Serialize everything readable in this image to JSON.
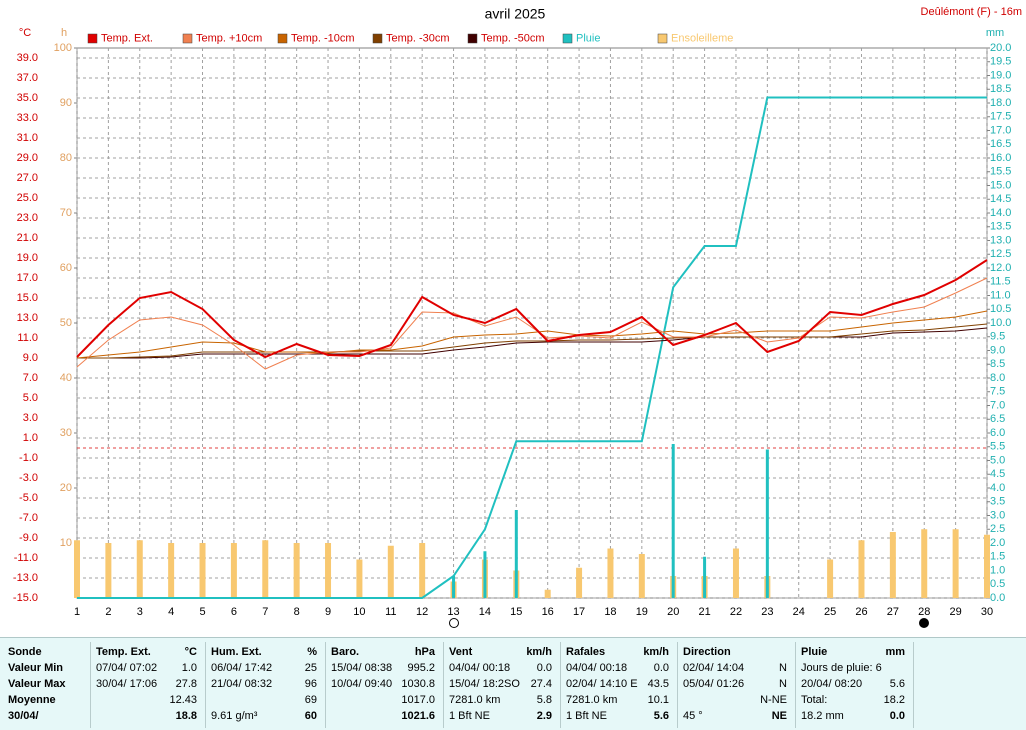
{
  "chart_data": {
    "type": "combo",
    "title": "avril 2025",
    "station": "Deûlémont (F) - 16m",
    "y_unit": "°C",
    "h_unit": "h",
    "y2_unit": "mm",
    "grid": true,
    "x": [
      1,
      2,
      3,
      4,
      5,
      6,
      7,
      8,
      9,
      10,
      11,
      12,
      13,
      14,
      15,
      16,
      17,
      18,
      19,
      20,
      21,
      22,
      23,
      24,
      25,
      26,
      27,
      28,
      29,
      30
    ],
    "xlim": [
      1,
      30
    ],
    "xticks": [
      1,
      2,
      3,
      4,
      5,
      6,
      7,
      8,
      9,
      10,
      11,
      12,
      13,
      14,
      15,
      16,
      17,
      18,
      19,
      20,
      21,
      22,
      23,
      24,
      25,
      26,
      27,
      28,
      29,
      30
    ],
    "ylim": [
      -15,
      40
    ],
    "yticks": [
      {
        "value": -15,
        "label": "-15.0"
      },
      {
        "value": -13,
        "label": "-13.0"
      },
      {
        "value": -11,
        "label": "-11.0"
      },
      {
        "value": -9,
        "label": "-9.0"
      },
      {
        "value": -7,
        "label": "-7.0"
      },
      {
        "value": -5,
        "label": "-5.0"
      },
      {
        "value": -3,
        "label": "-3.0"
      },
      {
        "value": -1,
        "label": "-1.0"
      },
      {
        "value": 1,
        "label": "1.0"
      },
      {
        "value": 3,
        "label": "3.0"
      },
      {
        "value": 5,
        "label": "5.0"
      },
      {
        "value": 7,
        "label": "7.0"
      },
      {
        "value": 9,
        "label": "9.0"
      },
      {
        "value": 11,
        "label": "11.0"
      },
      {
        "value": 13,
        "label": "13.0"
      },
      {
        "value": 15,
        "label": "15.0"
      },
      {
        "value": 17,
        "label": "17.0"
      },
      {
        "value": 19,
        "label": "19.0"
      },
      {
        "value": 21,
        "label": "21.0"
      },
      {
        "value": 23,
        "label": "23.0"
      },
      {
        "value": 25,
        "label": "25.0"
      },
      {
        "value": 27,
        "label": "27.0"
      },
      {
        "value": 29,
        "label": "29.0"
      },
      {
        "value": 31,
        "label": "31.0"
      },
      {
        "value": 33,
        "label": "33.0"
      },
      {
        "value": 35,
        "label": "35.0"
      },
      {
        "value": 37,
        "label": "37.0"
      },
      {
        "value": 39,
        "label": "39.0"
      }
    ],
    "hlim": [
      0,
      100
    ],
    "hticks": [
      10,
      20,
      30,
      40,
      50,
      60,
      70,
      80,
      90,
      100
    ],
    "y2lim": [
      0,
      20
    ],
    "y2ticks": [
      {
        "value": 0,
        "label": "0.0"
      },
      0.5,
      {
        "value": 1,
        "label": "1.0"
      },
      1.5,
      {
        "value": 2,
        "label": "2.0"
      },
      2.5,
      {
        "value": 3,
        "label": "3.0"
      },
      3.5,
      {
        "value": 4,
        "label": "4.0"
      },
      4.5,
      {
        "value": 5,
        "label": "5.0"
      },
      5.5,
      {
        "value": 6,
        "label": "6.0"
      },
      6.5,
      {
        "value": 7,
        "label": "7.0"
      },
      7.5,
      {
        "value": 8,
        "label": "8.0"
      },
      8.5,
      {
        "value": 9,
        "label": "9.0"
      },
      9.5,
      {
        "value": 10,
        "label": "10.0"
      },
      10.5,
      {
        "value": 11,
        "label": "11.0"
      },
      11.5,
      {
        "value": 12,
        "label": "12.0"
      },
      12.5,
      {
        "value": 13,
        "label": "13.0"
      },
      13.5,
      {
        "value": 14,
        "label": "14.0"
      },
      14.5,
      {
        "value": 15,
        "label": "15.0"
      },
      15.5,
      {
        "value": 16,
        "label": "16.0"
      },
      16.5,
      {
        "value": 17,
        "label": "17.0"
      },
      17.5,
      {
        "value": 18,
        "label": "18.0"
      },
      18.5,
      {
        "value": 19,
        "label": "19.0"
      },
      19.5,
      {
        "value": 20,
        "label": "20.0"
      }
    ],
    "reference_line": {
      "value": 0,
      "color": "#e04040"
    },
    "series": [
      {
        "name": "Temp. Ext.",
        "color": "#e00000",
        "type": "line",
        "axis": "y",
        "values": [
          9.1,
          12.3,
          15.0,
          15.6,
          13.9,
          10.8,
          9.1,
          10.4,
          9.3,
          9.2,
          10.3,
          15.1,
          13.3,
          12.5,
          13.9,
          10.7,
          11.3,
          11.6,
          13.1,
          10.3,
          11.3,
          12.5,
          9.6,
          10.7,
          13.6,
          13.3,
          14.4,
          15.3,
          16.8,
          18.8
        ]
      },
      {
        "name": "Temp. +10cm",
        "color": "#f08050",
        "type": "line",
        "axis": "y",
        "values": [
          8.1,
          10.8,
          12.8,
          13.1,
          12.3,
          10.3,
          7.9,
          9.3,
          9.6,
          9.6,
          10.0,
          13.6,
          13.5,
          12.2,
          13.1,
          11.0,
          11.2,
          11.0,
          12.6,
          11.1,
          11.1,
          11.8,
          10.6,
          11.0,
          13.1,
          13.0,
          13.6,
          14.1,
          15.5,
          17.0
        ]
      },
      {
        "name": "Temp. -10cm",
        "color": "#c86400",
        "type": "line",
        "axis": "y",
        "values": [
          9.0,
          9.3,
          9.6,
          10.1,
          10.6,
          10.5,
          9.6,
          9.6,
          9.5,
          9.8,
          9.8,
          10.2,
          11.1,
          11.3,
          11.4,
          11.7,
          11.3,
          11.2,
          11.4,
          11.7,
          11.4,
          11.5,
          11.7,
          11.7,
          11.7,
          12.1,
          12.5,
          12.8,
          13.1,
          13.7
        ]
      },
      {
        "name": "Temp. -30cm",
        "color": "#804000",
        "type": "line",
        "axis": "y",
        "values": [
          9.0,
          9.0,
          9.1,
          9.2,
          9.6,
          9.6,
          9.6,
          9.6,
          9.6,
          9.7,
          9.7,
          9.7,
          10.1,
          10.5,
          10.7,
          10.7,
          10.8,
          10.8,
          10.9,
          11.0,
          11.1,
          11.1,
          11.1,
          11.1,
          11.1,
          11.4,
          11.7,
          11.8,
          12.1,
          12.4
        ]
      },
      {
        "name": "Temp. -50cm",
        "color": "#400000",
        "type": "line",
        "axis": "y",
        "values": [
          9.0,
          9.0,
          9.0,
          9.1,
          9.4,
          9.4,
          9.4,
          9.4,
          9.4,
          9.4,
          9.4,
          9.4,
          9.8,
          10.1,
          10.5,
          10.6,
          10.6,
          10.6,
          10.6,
          10.8,
          11.1,
          11.1,
          11.1,
          11.1,
          11.1,
          11.1,
          11.5,
          11.6,
          11.7,
          12.0
        ]
      },
      {
        "name": "Pluie",
        "color": "#20c0c0",
        "type": "line",
        "axis": "y2",
        "values": [
          0,
          0,
          0,
          0,
          0,
          0,
          0,
          0,
          0,
          0,
          0,
          0,
          0.8,
          2.5,
          5.7,
          5.7,
          5.7,
          5.7,
          5.7,
          11.3,
          12.8,
          12.8,
          18.2,
          18.2,
          18.2,
          18.2,
          18.2,
          18.2,
          18.2,
          18.2
        ]
      },
      {
        "name": "Ensoleilleme",
        "color": "#f8c870",
        "type": "bar",
        "axis": "h",
        "values": [
          10.5,
          10,
          10.5,
          10,
          10,
          10,
          10.5,
          10,
          10,
          7,
          9.5,
          10,
          3,
          7,
          5,
          1.5,
          5.5,
          9,
          8,
          4,
          4,
          9,
          4,
          0,
          7,
          10.5,
          12,
          12.5,
          12.5,
          11.5
        ]
      }
    ],
    "rain_daily": {
      "color": "#20c0c0",
      "values": [
        null,
        null,
        null,
        null,
        null,
        null,
        null,
        null,
        null,
        null,
        null,
        null,
        0.8,
        1.7,
        3.2,
        null,
        null,
        null,
        null,
        5.6,
        1.5,
        null,
        5.4,
        null,
        null,
        null,
        null,
        null,
        null,
        null
      ]
    }
  },
  "stats": {
    "row_labels": [
      "Sonde",
      "Valeur Min",
      "Valeur Max",
      "Moyenne",
      "30/04/"
    ],
    "columns": [
      {
        "title": "Temp. Ext.",
        "unit": "°C",
        "rows": [
          {
            "left": "07/04/ 07:02",
            "right": "1.0"
          },
          {
            "left": "30/04/ 17:06",
            "right": "27.8"
          },
          {
            "right": "12.43"
          },
          {
            "right": "18.8"
          }
        ]
      },
      {
        "title": "Hum. Ext.",
        "unit": "%",
        "rows": [
          {
            "left": "06/04/ 17:42",
            "right": "25"
          },
          {
            "left": "21/04/ 08:32",
            "right": "96"
          },
          {
            "right": "69"
          },
          {
            "left": "9.61 g/m³",
            "right": "60"
          }
        ]
      },
      {
        "title": "Baro.",
        "unit": "hPa",
        "rows": [
          {
            "left": "15/04/ 08:38",
            "right": "995.2"
          },
          {
            "left": "10/04/ 09:40",
            "right": "1030.8"
          },
          {
            "right": "1017.0"
          },
          {
            "right": "1021.6"
          }
        ]
      },
      {
        "title": "Vent",
        "unit": "km/h",
        "rows": [
          {
            "left": "04/04/ 00:18",
            "right": "0.0"
          },
          {
            "left": "15/04/ 18:2SO",
            "right": "27.4"
          },
          {
            "left": "7281.0 km",
            "right": "5.8"
          },
          {
            "left": "1 Bft NE",
            "right": "2.9"
          }
        ]
      },
      {
        "title": "Rafales",
        "unit": "km/h",
        "rows": [
          {
            "left": "04/04/ 00:18",
            "right": "0.0"
          },
          {
            "left": "02/04/ 14:10 E",
            "right": "43.5"
          },
          {
            "left": "7281.0 km",
            "right": "10.1"
          },
          {
            "left": "1 Bft NE",
            "right": "5.6"
          }
        ]
      },
      {
        "title": "Direction",
        "rows": [
          {
            "left": "02/04/ 14:04",
            "right": "N"
          },
          {
            "left": "05/04/ 01:26",
            "right": "N"
          },
          {
            "right": "N-NE"
          },
          {
            "left": "45 °",
            "right": "NE"
          }
        ]
      },
      {
        "title": "Pluie",
        "unit": "mm",
        "rows": [
          {
            "left": "Jours de pluie: 6"
          },
          {
            "left": "20/04/ 08:20",
            "right": "5.6"
          },
          {
            "left": "Total:",
            "right": "18.2"
          },
          {
            "left": "18.2 mm",
            "right": "0.0"
          }
        ]
      }
    ]
  }
}
